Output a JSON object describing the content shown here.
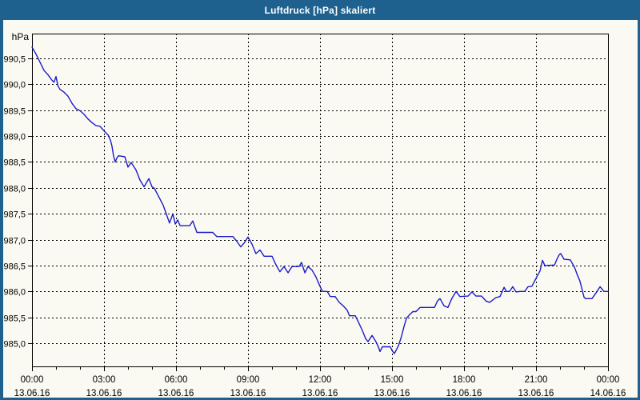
{
  "window": {
    "title": "Luftdruck [hPa] skaliert"
  },
  "colors": {
    "title_bar": "#1e618f",
    "window_border": "#1e618f",
    "background": "#fafaf2",
    "line": "#1a1acc",
    "grid": "#000000",
    "text": "#000000"
  },
  "chart_data": {
    "type": "line",
    "title": "Luftdruck [hPa] skaliert",
    "y_axis_unit_label": "hPa",
    "x_range_hours": [
      0,
      24
    ],
    "ylim": [
      984.55,
      990.98
    ],
    "grid": "dashed",
    "legend": "none",
    "y_ticks": [
      {
        "value": 990.5,
        "label": "990,5"
      },
      {
        "value": 990.0,
        "label": "990,0"
      },
      {
        "value": 989.5,
        "label": "989,5"
      },
      {
        "value": 989.0,
        "label": "989,0"
      },
      {
        "value": 988.5,
        "label": "988,5"
      },
      {
        "value": 988.0,
        "label": "988,0"
      },
      {
        "value": 987.5,
        "label": "987,5"
      },
      {
        "value": 987.0,
        "label": "987,0"
      },
      {
        "value": 986.5,
        "label": "986,5"
      },
      {
        "value": 986.0,
        "label": "986,0"
      },
      {
        "value": 985.5,
        "label": "985,5"
      },
      {
        "value": 985.0,
        "label": "985,0"
      }
    ],
    "x_ticks": [
      {
        "hour": 0,
        "time": "00:00",
        "date": "13.06.16"
      },
      {
        "hour": 3,
        "time": "03:00",
        "date": "13.06.16"
      },
      {
        "hour": 6,
        "time": "06:00",
        "date": "13.06.16"
      },
      {
        "hour": 9,
        "time": "09:00",
        "date": "13.06.16"
      },
      {
        "hour": 12,
        "time": "12:00",
        "date": "13.06.16"
      },
      {
        "hour": 15,
        "time": "15:00",
        "date": "13.06.16"
      },
      {
        "hour": 18,
        "time": "18:00",
        "date": "13.06.16"
      },
      {
        "hour": 21,
        "time": "21:00",
        "date": "13.06.16"
      },
      {
        "hour": 24,
        "time": "00:00",
        "date": "14.06.16"
      }
    ],
    "minor_x_tick_every_hours": 1,
    "series": [
      {
        "name": "Luftdruck",
        "points": [
          [
            0,
            990.72
          ],
          [
            0.17,
            990.58
          ],
          [
            0.33,
            990.43
          ],
          [
            0.5,
            990.27
          ],
          [
            0.67,
            990.18
          ],
          [
            0.83,
            990.08
          ],
          [
            0.92,
            990.04
          ],
          [
            1,
            990.15
          ],
          [
            1.08,
            989.97
          ],
          [
            1.17,
            989.9
          ],
          [
            1.33,
            989.85
          ],
          [
            1.5,
            989.77
          ],
          [
            1.67,
            989.63
          ],
          [
            1.83,
            989.53
          ],
          [
            2,
            989.49
          ],
          [
            2.17,
            989.42
          ],
          [
            2.33,
            989.33
          ],
          [
            2.5,
            989.26
          ],
          [
            2.67,
            989.2
          ],
          [
            2.83,
            989.19
          ],
          [
            3,
            989.1
          ],
          [
            3.17,
            989.02
          ],
          [
            3.27,
            988.92
          ],
          [
            3.33,
            988.81
          ],
          [
            3.4,
            988.61
          ],
          [
            3.47,
            988.5
          ],
          [
            3.53,
            988.57
          ],
          [
            3.6,
            988.62
          ],
          [
            3.87,
            988.6
          ],
          [
            4,
            988.4
          ],
          [
            4.13,
            988.49
          ],
          [
            4.33,
            988.35
          ],
          [
            4.5,
            988.15
          ],
          [
            4.67,
            988.02
          ],
          [
            4.87,
            988.18
          ],
          [
            5,
            988.02
          ],
          [
            5.1,
            987.99
          ],
          [
            5.27,
            987.84
          ],
          [
            5.47,
            987.66
          ],
          [
            5.63,
            987.45
          ],
          [
            5.73,
            987.32
          ],
          [
            5.87,
            987.5
          ],
          [
            5.97,
            987.3
          ],
          [
            6.07,
            987.38
          ],
          [
            6.17,
            987.27
          ],
          [
            6.57,
            987.27
          ],
          [
            6.7,
            987.36
          ],
          [
            6.87,
            987.14
          ],
          [
            7.53,
            987.14
          ],
          [
            7.7,
            987.06
          ],
          [
            8.37,
            987.06
          ],
          [
            8.53,
            986.97
          ],
          [
            8.7,
            986.86
          ],
          [
            8.83,
            986.93
          ],
          [
            9,
            987.05
          ],
          [
            9.17,
            986.91
          ],
          [
            9.33,
            986.73
          ],
          [
            9.5,
            986.8
          ],
          [
            9.67,
            986.68
          ],
          [
            10,
            986.68
          ],
          [
            10.17,
            986.51
          ],
          [
            10.33,
            986.38
          ],
          [
            10.5,
            986.48
          ],
          [
            10.67,
            986.36
          ],
          [
            10.83,
            986.48
          ],
          [
            11.13,
            986.48
          ],
          [
            11.23,
            986.56
          ],
          [
            11.37,
            986.36
          ],
          [
            11.5,
            986.48
          ],
          [
            11.67,
            986.41
          ],
          [
            11.83,
            986.28
          ],
          [
            12,
            986.1
          ],
          [
            12.1,
            986
          ],
          [
            12.3,
            986
          ],
          [
            12.43,
            985.9
          ],
          [
            12.63,
            985.9
          ],
          [
            12.8,
            985.79
          ],
          [
            12.97,
            985.72
          ],
          [
            13.13,
            985.64
          ],
          [
            13.23,
            985.53
          ],
          [
            13.47,
            985.53
          ],
          [
            13.6,
            985.41
          ],
          [
            13.77,
            985.24
          ],
          [
            13.9,
            985.09
          ],
          [
            14,
            985.03
          ],
          [
            14.17,
            985.15
          ],
          [
            14.33,
            985.03
          ],
          [
            14.43,
            984.93
          ],
          [
            14.5,
            984.84
          ],
          [
            14.6,
            984.93
          ],
          [
            14.93,
            984.93
          ],
          [
            15,
            984.86
          ],
          [
            15.1,
            984.8
          ],
          [
            15.27,
            984.95
          ],
          [
            15.4,
            985.14
          ],
          [
            15.5,
            985.32
          ],
          [
            15.6,
            985.48
          ],
          [
            15.73,
            985.55
          ],
          [
            15.87,
            985.61
          ],
          [
            16,
            985.61
          ],
          [
            16.17,
            985.69
          ],
          [
            16.77,
            985.69
          ],
          [
            16.9,
            985.82
          ],
          [
            17,
            985.86
          ],
          [
            17.17,
            985.72
          ],
          [
            17.33,
            985.69
          ],
          [
            17.5,
            985.87
          ],
          [
            17.67,
            986
          ],
          [
            17.83,
            985.9
          ],
          [
            18.17,
            985.91
          ],
          [
            18.33,
            985.99
          ],
          [
            18.5,
            985.91
          ],
          [
            18.73,
            985.91
          ],
          [
            18.93,
            985.81
          ],
          [
            19.07,
            985.79
          ],
          [
            19.33,
            985.88
          ],
          [
            19.5,
            985.9
          ],
          [
            19.67,
            986.08
          ],
          [
            19.77,
            986
          ],
          [
            19.9,
            986
          ],
          [
            20.03,
            986.09
          ],
          [
            20.17,
            985.99
          ],
          [
            20.33,
            986
          ],
          [
            20.53,
            986
          ],
          [
            20.67,
            986.09
          ],
          [
            20.83,
            986.1
          ],
          [
            21,
            986.25
          ],
          [
            21.17,
            986.4
          ],
          [
            21.27,
            986.6
          ],
          [
            21.37,
            986.5
          ],
          [
            21.77,
            986.51
          ],
          [
            21.87,
            986.62
          ],
          [
            21.97,
            986.71
          ],
          [
            22.03,
            986.73
          ],
          [
            22.17,
            986.62
          ],
          [
            22.43,
            986.61
          ],
          [
            22.6,
            986.47
          ],
          [
            22.73,
            986.31
          ],
          [
            22.83,
            986.2
          ],
          [
            22.93,
            986.02
          ],
          [
            23,
            985.89
          ],
          [
            23.07,
            985.86
          ],
          [
            23.33,
            985.86
          ],
          [
            23.5,
            985.97
          ],
          [
            23.67,
            986.09
          ],
          [
            23.83,
            986
          ],
          [
            24,
            986
          ]
        ]
      }
    ]
  }
}
